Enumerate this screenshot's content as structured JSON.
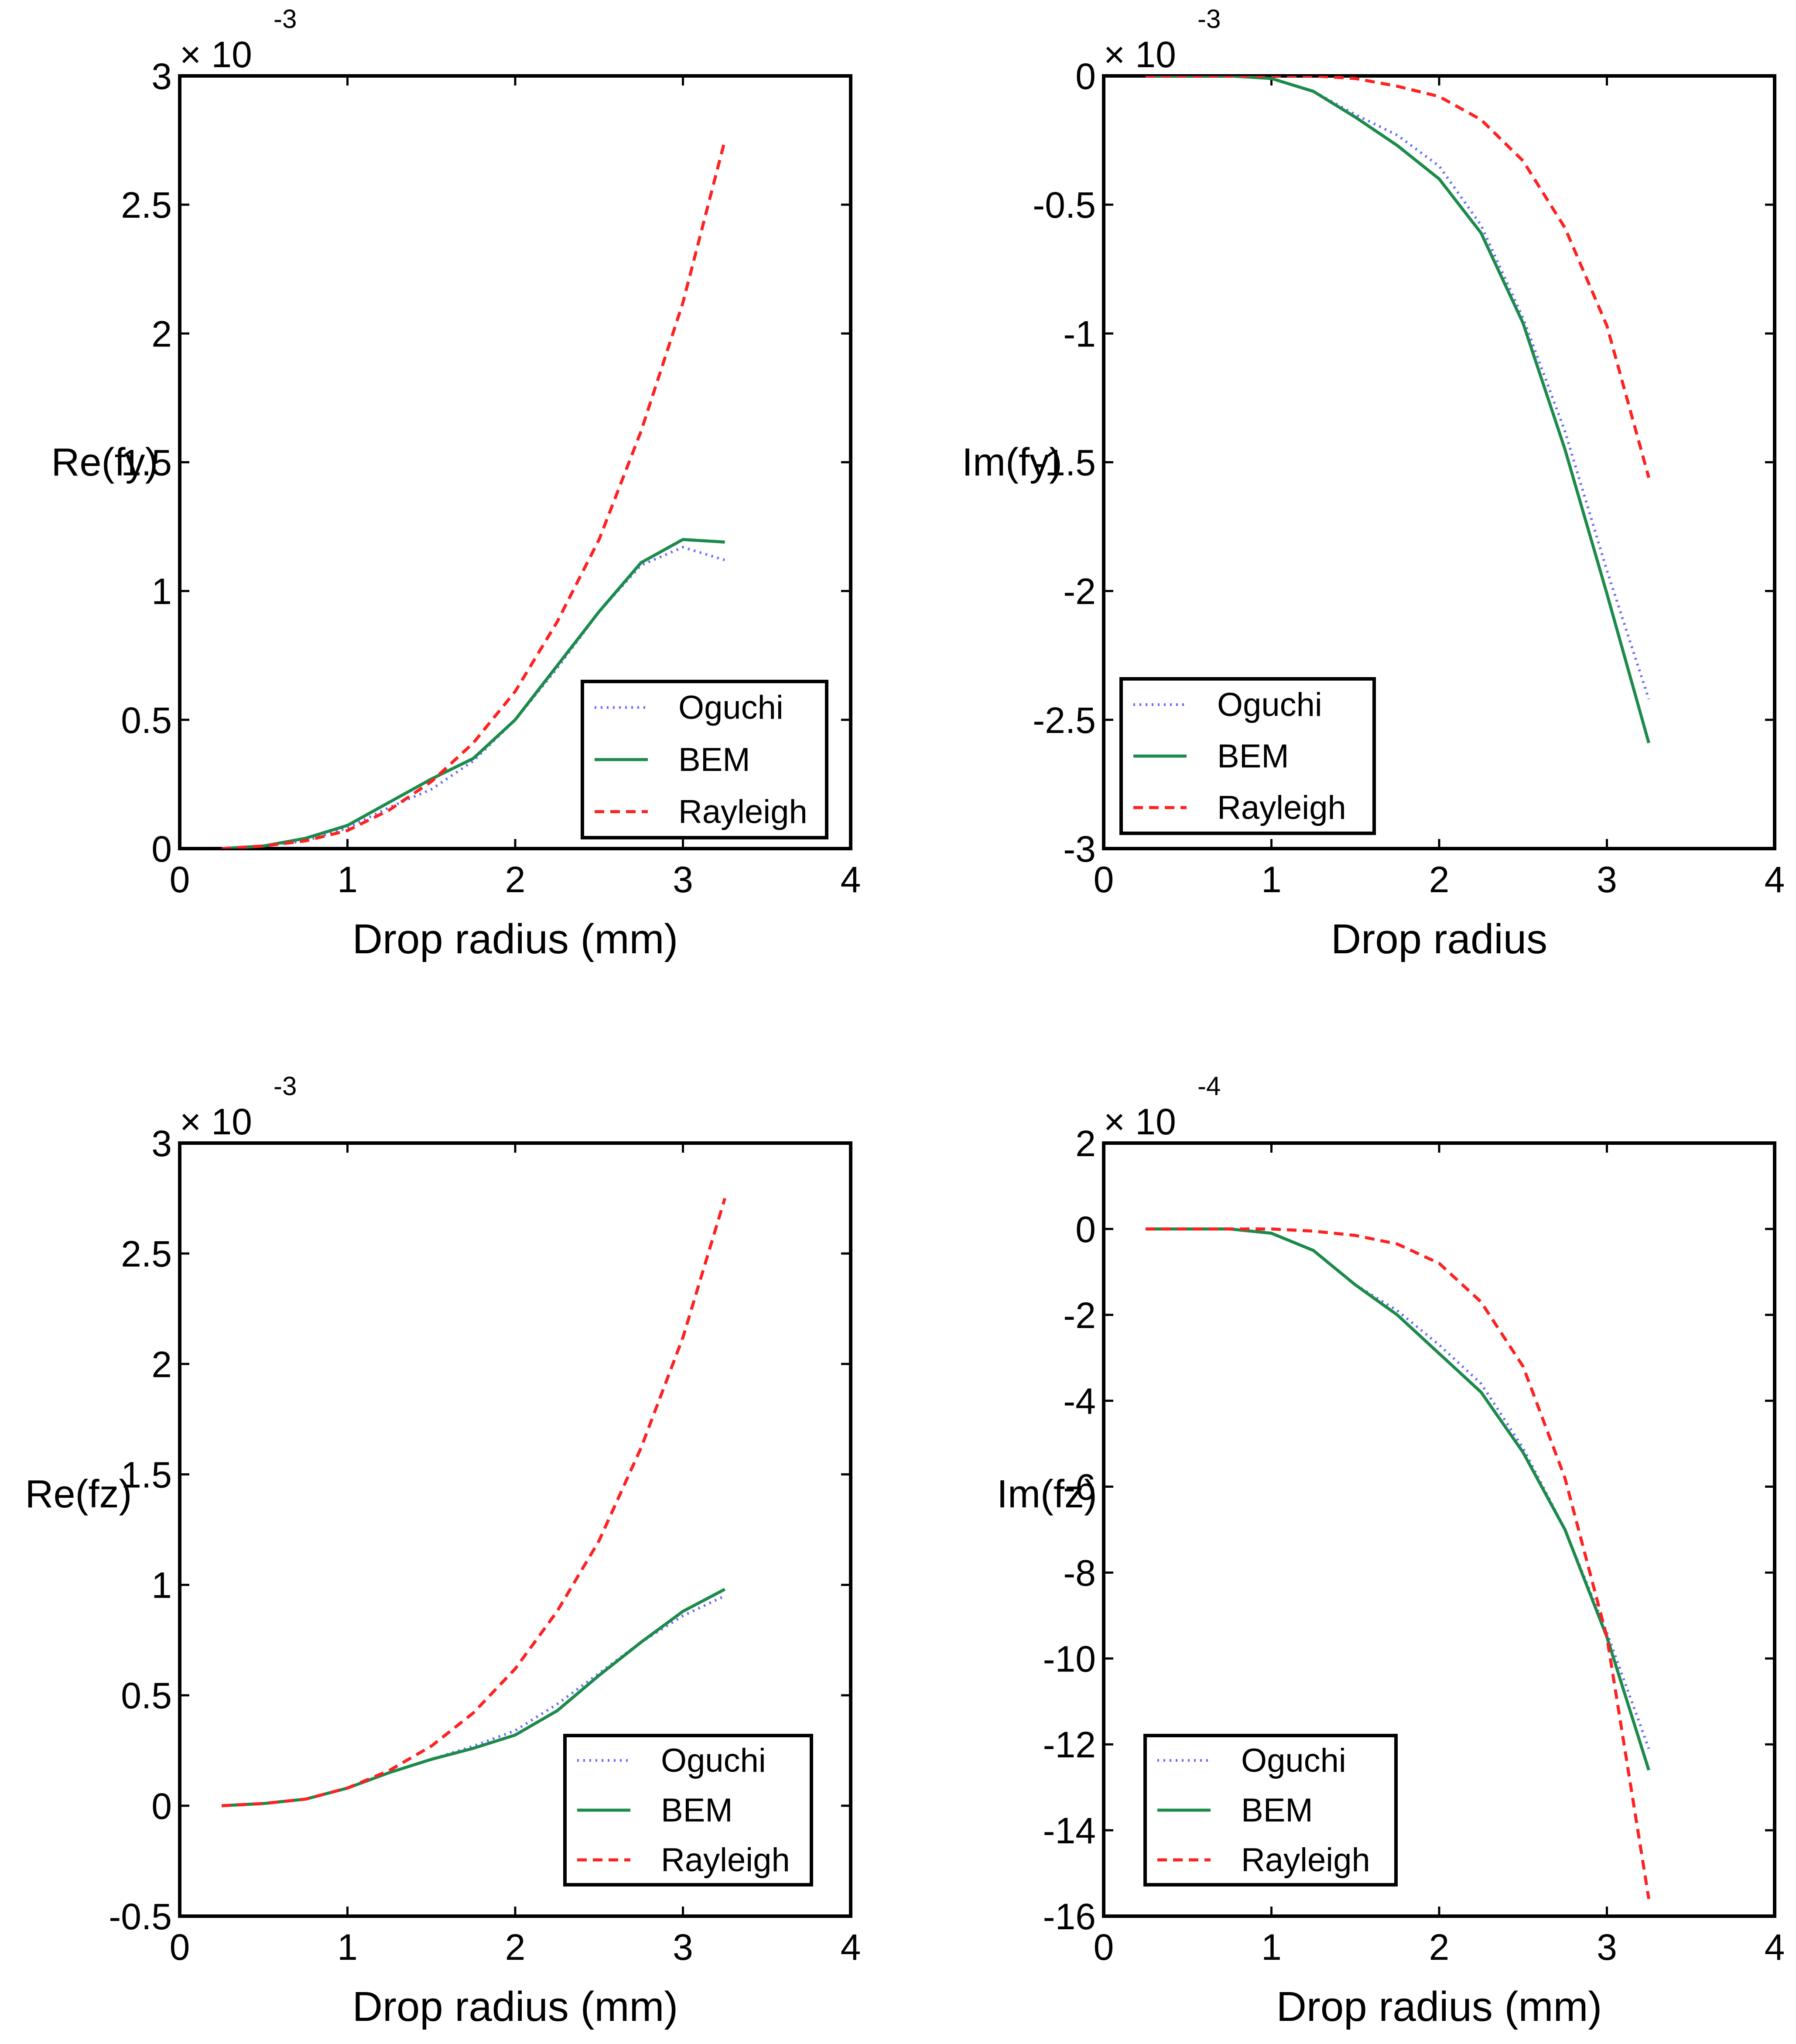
{
  "chart_data": [
    {
      "type": "line",
      "panel": "top-left",
      "ylabel": "Re(fy)",
      "xlabel": "Drop radius (mm)",
      "multiplier_prefix": "× 10",
      "multiplier_exponent": "-3",
      "xlim": [
        0,
        4
      ],
      "ylim": [
        0,
        3
      ],
      "xticks": [
        "0",
        "1",
        "2",
        "3",
        "4"
      ],
      "yticks": [
        "0",
        "0.5",
        "1",
        "1.5",
        "2",
        "2.5",
        "3"
      ],
      "legend_position": "bottom-right",
      "series": [
        {
          "name": "Oguchi",
          "color": "#6666ff",
          "style": "dotted",
          "x": [
            0.25,
            0.5,
            0.75,
            1.0,
            1.25,
            1.5,
            1.75,
            2.0,
            2.25,
            2.5,
            2.75,
            3.0,
            3.25
          ],
          "y": [
            0.0,
            0.01,
            0.03,
            0.08,
            0.16,
            0.23,
            0.34,
            0.5,
            0.7,
            0.92,
            1.1,
            1.17,
            1.12
          ]
        },
        {
          "name": "BEM",
          "color": "#1b8a4a",
          "style": "solid",
          "x": [
            0.25,
            0.5,
            0.75,
            1.0,
            1.25,
            1.5,
            1.75,
            2.0,
            2.25,
            2.5,
            2.75,
            3.0,
            3.25
          ],
          "y": [
            0.0,
            0.01,
            0.04,
            0.09,
            0.18,
            0.27,
            0.35,
            0.5,
            0.71,
            0.92,
            1.11,
            1.2,
            1.19
          ]
        },
        {
          "name": "Rayleigh",
          "color": "#ff2020",
          "style": "dashed",
          "x": [
            0.25,
            0.5,
            0.75,
            1.0,
            1.25,
            1.5,
            1.75,
            2.0,
            2.25,
            2.5,
            2.75,
            3.0,
            3.25
          ],
          "y": [
            0.0,
            0.01,
            0.03,
            0.07,
            0.15,
            0.26,
            0.41,
            0.61,
            0.88,
            1.2,
            1.62,
            2.12,
            2.75
          ]
        }
      ]
    },
    {
      "type": "line",
      "panel": "top-right",
      "ylabel": "Im(fy)",
      "xlabel": "Drop radius",
      "multiplier_prefix": "× 10",
      "multiplier_exponent": "-3",
      "xlim": [
        0,
        4
      ],
      "ylim": [
        -3,
        0
      ],
      "xticks": [
        "0",
        "1",
        "2",
        "3",
        "4"
      ],
      "yticks": [
        "-3",
        "-2.5",
        "-2",
        "-1.5",
        "-1",
        "-0.5",
        "0"
      ],
      "legend_position": "bottom-left",
      "series": [
        {
          "name": "Oguchi",
          "color": "#6666ff",
          "style": "dotted",
          "x": [
            0.25,
            0.5,
            0.75,
            1.0,
            1.25,
            1.5,
            1.75,
            2.0,
            2.25,
            2.5,
            2.75,
            3.0,
            3.25
          ],
          "y": [
            0.0,
            0.0,
            0.0,
            -0.01,
            -0.06,
            -0.15,
            -0.23,
            -0.35,
            -0.58,
            -0.94,
            -1.38,
            -1.92,
            -2.42
          ]
        },
        {
          "name": "BEM",
          "color": "#1b8a4a",
          "style": "solid",
          "x": [
            0.25,
            0.5,
            0.75,
            1.0,
            1.25,
            1.5,
            1.75,
            2.0,
            2.25,
            2.5,
            2.75,
            3.0,
            3.25
          ],
          "y": [
            0.0,
            0.0,
            0.0,
            -0.01,
            -0.06,
            -0.16,
            -0.27,
            -0.4,
            -0.61,
            -0.96,
            -1.45,
            -2.01,
            -2.59
          ]
        },
        {
          "name": "Rayleigh",
          "color": "#ff2020",
          "style": "dashed",
          "x": [
            0.25,
            0.5,
            0.75,
            1.0,
            1.25,
            1.5,
            1.75,
            2.0,
            2.25,
            2.5,
            2.75,
            3.0,
            3.25
          ],
          "y": [
            0.0,
            0.0,
            0.0,
            0.0,
            0.0,
            -0.01,
            -0.04,
            -0.08,
            -0.17,
            -0.33,
            -0.59,
            -0.97,
            -1.56
          ]
        }
      ]
    },
    {
      "type": "line",
      "panel": "bottom-left",
      "ylabel": "Re(fz)",
      "xlabel": "Drop  radius (mm)",
      "multiplier_prefix": "× 10",
      "multiplier_exponent": "-3",
      "xlim": [
        0,
        4
      ],
      "ylim": [
        -0.5,
        3
      ],
      "xticks": [
        "0",
        "1",
        "2",
        "3",
        "4"
      ],
      "yticks": [
        "-0.5",
        "0",
        "0.5",
        "1",
        "1.5",
        "2",
        "2.5",
        "3"
      ],
      "legend_position": "bottom-right",
      "series": [
        {
          "name": "Oguchi",
          "color": "#6666ff",
          "style": "dotted",
          "x": [
            0.25,
            0.5,
            0.75,
            1.0,
            1.25,
            1.5,
            1.75,
            2.0,
            2.25,
            2.5,
            2.75,
            3.0,
            3.25
          ],
          "y": [
            0.0,
            0.01,
            0.03,
            0.08,
            0.15,
            0.21,
            0.27,
            0.34,
            0.46,
            0.6,
            0.74,
            0.86,
            0.95
          ]
        },
        {
          "name": "BEM",
          "color": "#1b8a4a",
          "style": "solid",
          "x": [
            0.25,
            0.5,
            0.75,
            1.0,
            1.25,
            1.5,
            1.75,
            2.0,
            2.25,
            2.5,
            2.75,
            3.0,
            3.25
          ],
          "y": [
            0.0,
            0.01,
            0.03,
            0.08,
            0.15,
            0.21,
            0.26,
            0.32,
            0.43,
            0.59,
            0.74,
            0.88,
            0.98
          ]
        },
        {
          "name": "Rayleigh",
          "color": "#ff2020",
          "style": "dashed",
          "x": [
            0.25,
            0.5,
            0.75,
            1.0,
            1.25,
            1.5,
            1.75,
            2.0,
            2.25,
            2.5,
            2.75,
            3.0,
            3.25
          ],
          "y": [
            0.0,
            0.01,
            0.03,
            0.08,
            0.16,
            0.27,
            0.42,
            0.62,
            0.88,
            1.2,
            1.62,
            2.12,
            2.75
          ]
        }
      ]
    },
    {
      "type": "line",
      "panel": "bottom-right",
      "ylabel": "Im(fz)",
      "xlabel": "Drop radius (mm)",
      "multiplier_prefix": "× 10",
      "multiplier_exponent": "-4",
      "xlim": [
        0,
        4
      ],
      "ylim": [
        -16,
        2
      ],
      "xticks": [
        "0",
        "1",
        "2",
        "3",
        "4"
      ],
      "yticks": [
        "-16",
        "-14",
        "-12",
        "-10",
        "-8",
        "-6",
        "-4",
        "-2",
        "0",
        "2"
      ],
      "legend_position": "bottom-left",
      "series": [
        {
          "name": "Oguchi",
          "color": "#6666ff",
          "style": "dotted",
          "x": [
            0.25,
            0.5,
            0.75,
            1.0,
            1.25,
            1.5,
            1.75,
            2.0,
            2.25,
            2.5,
            2.75,
            3.0,
            3.25
          ],
          "y": [
            0.0,
            0.0,
            0.0,
            -0.1,
            -0.5,
            -1.3,
            -1.9,
            -2.7,
            -3.6,
            -5.1,
            -7.0,
            -9.4,
            -12.1
          ]
        },
        {
          "name": "BEM",
          "color": "#1b8a4a",
          "style": "solid",
          "x": [
            0.25,
            0.5,
            0.75,
            1.0,
            1.25,
            1.5,
            1.75,
            2.0,
            2.25,
            2.5,
            2.75,
            3.0,
            3.25
          ],
          "y": [
            0.0,
            0.0,
            0.0,
            -0.1,
            -0.5,
            -1.3,
            -2.0,
            -2.9,
            -3.8,
            -5.2,
            -7.0,
            -9.5,
            -12.6
          ]
        },
        {
          "name": "Rayleigh",
          "color": "#ff2020",
          "style": "dashed",
          "x": [
            0.25,
            0.5,
            0.75,
            1.0,
            1.25,
            1.5,
            1.75,
            2.0,
            2.25,
            2.5,
            2.75,
            3.0,
            3.25
          ],
          "y": [
            0.0,
            0.0,
            0.0,
            0.0,
            -0.05,
            -0.15,
            -0.35,
            -0.8,
            -1.7,
            -3.2,
            -5.8,
            -9.5,
            -15.6
          ]
        }
      ]
    }
  ]
}
